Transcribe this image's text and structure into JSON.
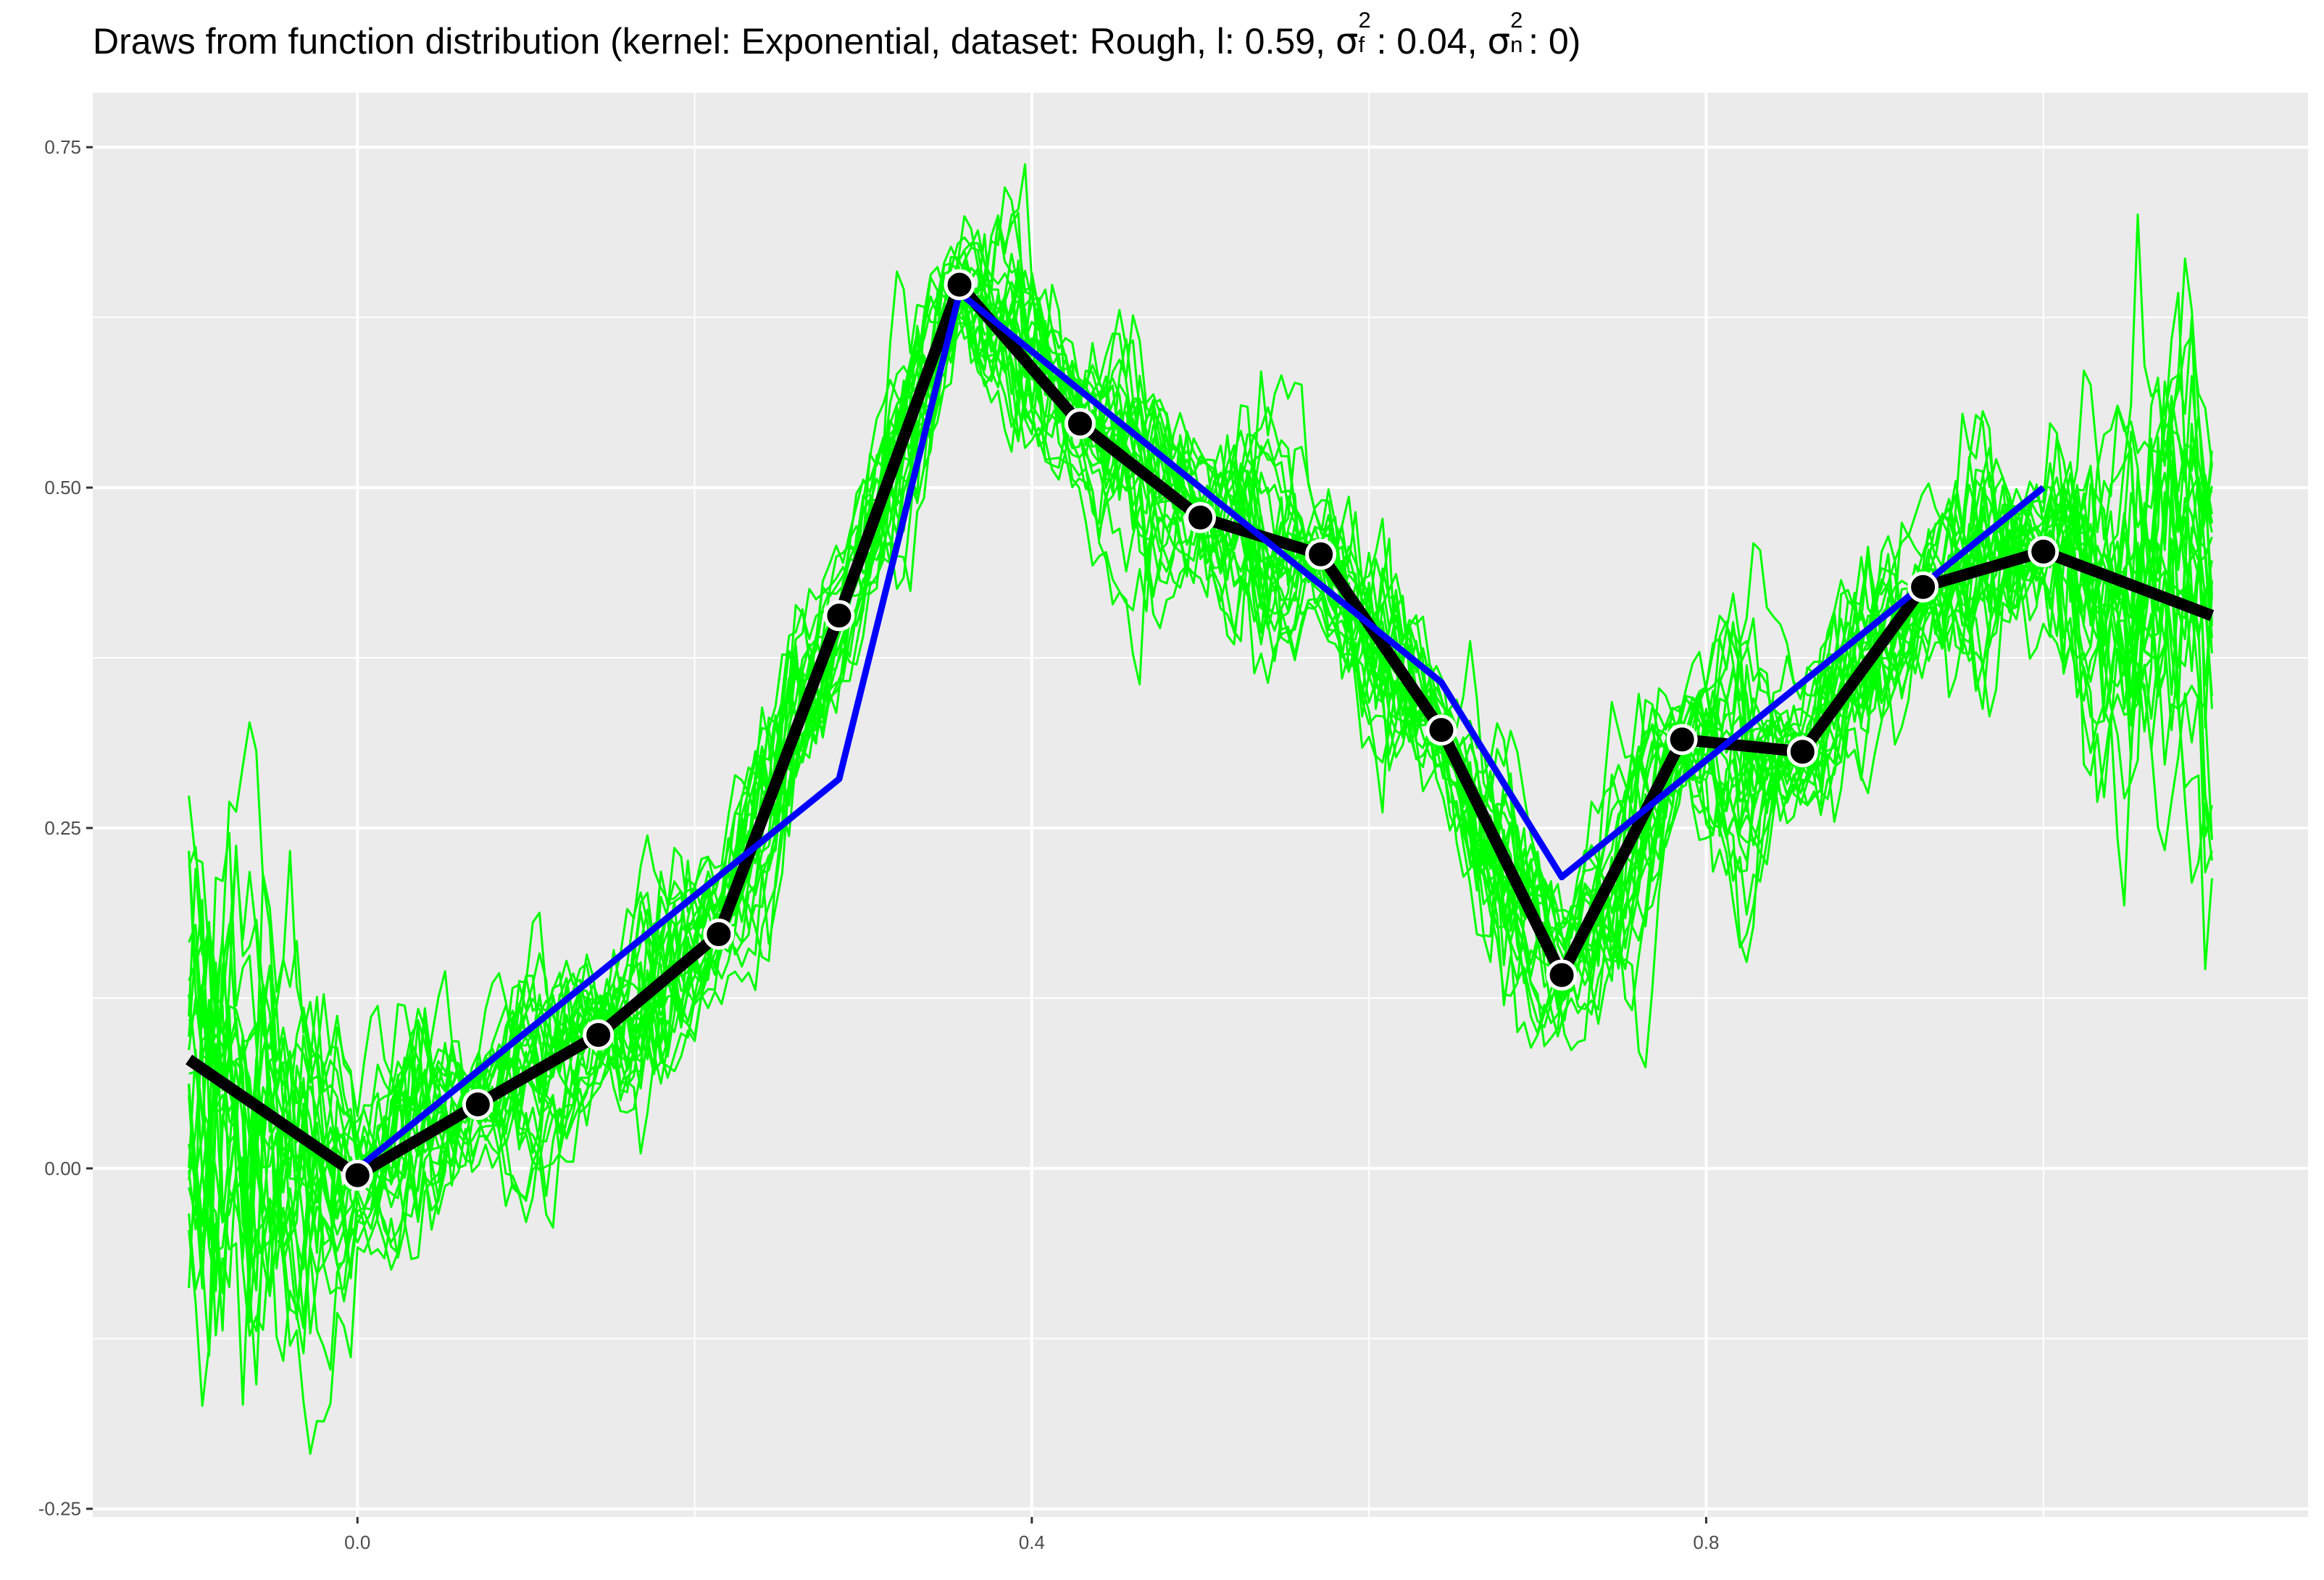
{
  "title": {
    "prefix": "Draws from function distribution (kernel: Exponential, dataset: Rough, l: 0.59, ",
    "sigma": "σ",
    "f_sup": "2",
    "f_sub": "f",
    "f_value": ": 0.04, ",
    "n_sup": "2",
    "n_sub": "n",
    "n_value": ": 0)"
  },
  "chart_data": {
    "type": "line",
    "title": "Draws from function distribution (kernel: Exponential, dataset: Rough, l: 0.59, σf²: 0.04, σn²: 0)",
    "xlabel": "",
    "ylabel": "",
    "xlim": [
      -0.157,
      1.157
    ],
    "ylim": [
      -0.256,
      0.79
    ],
    "x_ticks": [
      0.0,
      0.4,
      0.8
    ],
    "x_tick_labels": [
      "0.0",
      "0.4",
      "0.8"
    ],
    "y_ticks": [
      -0.25,
      0.0,
      0.25,
      0.5,
      0.75
    ],
    "y_tick_labels": [
      "-0.25",
      "0.00",
      "0.25",
      "0.50",
      "0.75"
    ],
    "grid": true,
    "background": "#ebebeb",
    "colors": {
      "draws": "#00ff00",
      "mean": "#000000",
      "truth": "#0000ff",
      "point_fill": "#000000",
      "point_stroke": "#ffffff",
      "grid": "#ffffff",
      "tick_text": "#4d4d4d"
    },
    "num_draws": 25,
    "draws_x_range": [
      -0.1,
      1.1
    ],
    "mean_line": {
      "x": [
        -0.1,
        0.0,
        0.0714,
        0.1429,
        0.2143,
        0.2857,
        0.3571,
        0.4286,
        0.5,
        0.5714,
        0.6429,
        0.7143,
        0.7857,
        0.8571,
        0.9286,
        1.0,
        1.1
      ],
      "y": [
        0.08,
        -0.005,
        0.047,
        0.098,
        0.172,
        0.406,
        0.649,
        0.547,
        0.478,
        0.451,
        0.322,
        0.142,
        0.315,
        0.306,
        0.427,
        0.453,
        0.406
      ]
    },
    "observations": {
      "x": [
        0.0,
        0.0714,
        0.1429,
        0.2143,
        0.2857,
        0.3571,
        0.4286,
        0.5,
        0.5714,
        0.6429,
        0.7143,
        0.7857,
        0.8571,
        0.9286,
        1.0
      ],
      "y": [
        -0.005,
        0.047,
        0.098,
        0.172,
        0.406,
        0.649,
        0.547,
        0.478,
        0.451,
        0.322,
        0.142,
        0.315,
        0.306,
        0.427,
        0.453
      ]
    },
    "true_function": {
      "x": [
        0.0,
        0.2857,
        0.3571,
        0.6429,
        0.7143,
        1.0
      ],
      "y": [
        0.0,
        0.286,
        0.643,
        0.357,
        0.214,
        0.5
      ]
    }
  }
}
